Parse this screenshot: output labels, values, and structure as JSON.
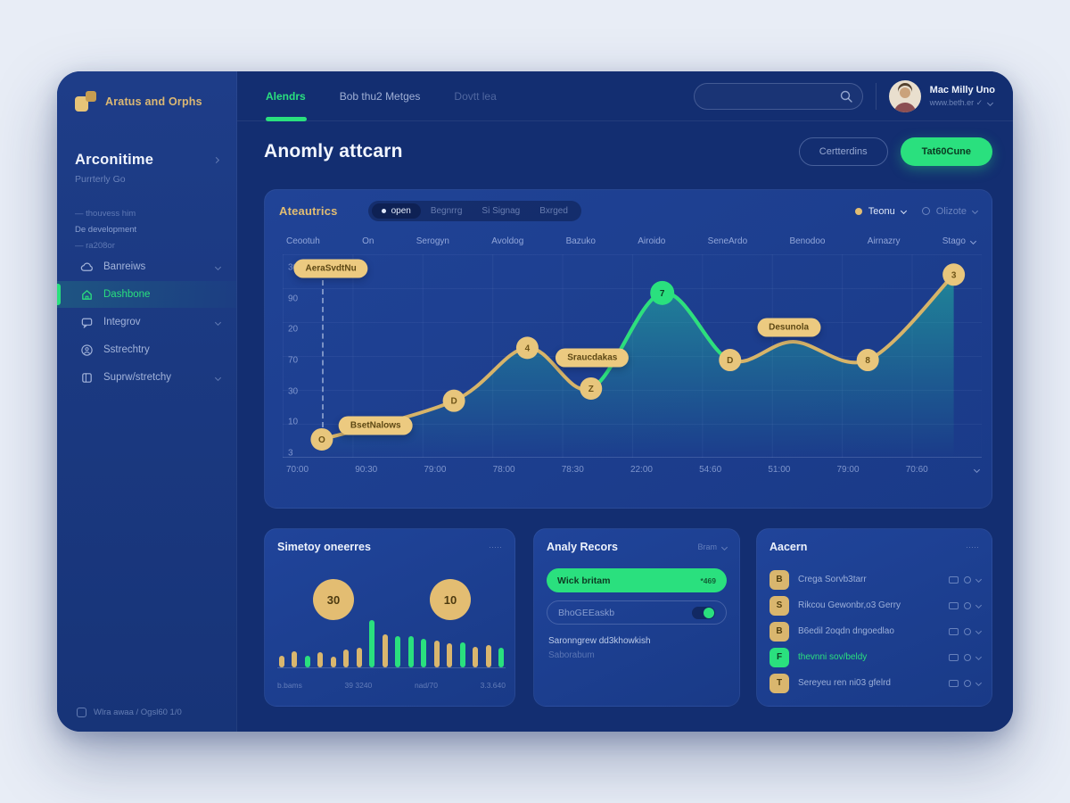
{
  "colors": {
    "green": "#2ae07e",
    "gold": "#e2bd72",
    "navy": "#15317a"
  },
  "logo": {
    "brand": "Aratus and Orphs"
  },
  "sidebar": {
    "heading": "Arconitime",
    "subheading": "Purrterly Go",
    "meta_line1": "— thouvess him",
    "meta_line2": "De development",
    "meta_line3": "— ra208or",
    "items": [
      {
        "label": "Banreiws",
        "icon": "cloud",
        "chevron": true,
        "active": false
      },
      {
        "label": "Dashbone",
        "icon": "home",
        "chevron": false,
        "active": true
      },
      {
        "label": "Integrov",
        "icon": "chat",
        "chevron": true,
        "active": false
      },
      {
        "label": "Sstrechtry",
        "icon": "user",
        "chevron": false,
        "active": false
      },
      {
        "label": "Suprw/stretchy",
        "icon": "grid",
        "chevron": true,
        "active": false
      }
    ],
    "footer": "Wlra awaa / Ogsl60   1/0"
  },
  "header": {
    "tabs": [
      {
        "label": "Alendrs",
        "active": true,
        "dim": false
      },
      {
        "label": "Bob thu2 Metges",
        "active": false,
        "dim": false
      },
      {
        "label": "Dovtt lea",
        "active": false,
        "dim": true
      }
    ],
    "search_placeholder": "",
    "user": {
      "name": "Mac Milly Uno",
      "meta": "www.beth.er  ✓"
    }
  },
  "page": {
    "title": "Anomly attcarn",
    "secondary_button": "Certterdins",
    "primary_button": "Tat60Cune"
  },
  "chart_card": {
    "title": "Ateautrics",
    "filters": [
      {
        "label": "open",
        "active": true
      },
      {
        "label": "Begnrrg",
        "active": false
      },
      {
        "label": "Si Signag",
        "active": false
      },
      {
        "label": "Bxrged",
        "active": false
      }
    ],
    "controls": [
      {
        "label": "Teonu",
        "marker": "gold-dot"
      },
      {
        "label": "Olizote",
        "marker": "circle"
      }
    ],
    "columns": [
      "Ceootuh",
      "On",
      "Serogyn",
      "Avoldog",
      "Bazuko",
      "Airoido",
      "SeneArdo",
      "Benodoo",
      "Airnazry",
      "Stago"
    ]
  },
  "chart_data": [
    {
      "type": "line",
      "title": "Ateautrics",
      "xlabel": "",
      "ylabel": "",
      "ylim": [
        0,
        100
      ],
      "grid": true,
      "legend": false,
      "y_ticks": [
        "30",
        "90",
        "20",
        "70",
        "30",
        "10",
        "3"
      ],
      "x_ticks": [
        "70:00",
        "90:30",
        "79:00",
        "78:00",
        "78:30",
        "22:00",
        "54:60",
        "51:00",
        "79:00",
        "70:60"
      ],
      "series": [
        {
          "name": "anomalies",
          "points": [
            {
              "x": 0.056,
              "y": 9,
              "marker": "O",
              "color": "gold"
            },
            {
              "x": 0.245,
              "y": 28,
              "marker": "D",
              "color": "gold"
            },
            {
              "x": 0.35,
              "y": 54,
              "marker": "4",
              "color": "gold"
            },
            {
              "x": 0.441,
              "y": 34,
              "marker": "Z",
              "color": "gold"
            },
            {
              "x": 0.543,
              "y": 81,
              "marker": "7",
              "color": "green"
            },
            {
              "x": 0.64,
              "y": 48,
              "marker": "D",
              "color": "gold"
            },
            {
              "x": 0.73,
              "y": 57,
              "marker": null,
              "color": "gold"
            },
            {
              "x": 0.837,
              "y": 48,
              "marker": "8",
              "color": "gold"
            },
            {
              "x": 0.96,
              "y": 90,
              "marker": "3",
              "color": "gold"
            }
          ]
        }
      ],
      "green_segment": [
        3,
        5
      ],
      "annotations": [
        {
          "text": "AeraSvdtNu",
          "x": 0.069,
          "y": 93,
          "dash_to_point": 0
        },
        {
          "text": "BsetNalows",
          "x": 0.133,
          "y": 16
        },
        {
          "text": "Sraucdakas",
          "x": 0.443,
          "y": 49
        },
        {
          "text": "Desunola",
          "x": 0.724,
          "y": 64
        }
      ]
    },
    {
      "type": "bar",
      "title": "Simetoy oneerres",
      "ylim": [
        0,
        60
      ],
      "values": [
        13,
        18,
        13,
        17,
        12,
        20,
        22,
        53,
        37,
        35,
        35,
        32,
        30,
        27,
        28,
        23,
        25,
        22
      ],
      "colors": [
        "gold",
        "gold",
        "green",
        "gold",
        "gold",
        "gold",
        "gold",
        "green",
        "gold",
        "green",
        "green",
        "green",
        "gold",
        "gold",
        "green",
        "gold",
        "gold",
        "green"
      ],
      "x_labels": [
        "b.bams",
        "39 3240",
        "nad/70",
        "3.3.640"
      ]
    }
  ],
  "summary_card": {
    "title": "Simetoy oneerres",
    "menu": "·····",
    "badges": [
      "30",
      "10"
    ]
  },
  "records_card": {
    "title": "Analy Recors",
    "menu": "Bram",
    "primary_row": {
      "label": "Wick britam",
      "value": "*469"
    },
    "toggle_row": {
      "label": "BhoGEEaskb",
      "on": true
    },
    "note_line1": "Saronngrew dd3khowkish",
    "note_line2": "Saborabum"
  },
  "alarm_card": {
    "title": "Aacern",
    "menu": "·····",
    "rows": [
      {
        "glyph": "B",
        "text": "Crega Sorvb3tarr",
        "green": false
      },
      {
        "glyph": "S",
        "text": "Rikcou Gewonbr,o3 Gerry",
        "green": false
      },
      {
        "glyph": "B",
        "text": "B6edil 2oqdn dngoedlao",
        "green": false
      },
      {
        "glyph": "F",
        "text": "thevnni sov/beldy",
        "green": true
      },
      {
        "glyph": "T",
        "text": "Sereyeu ren ni03 gfelrd",
        "green": false
      }
    ]
  }
}
